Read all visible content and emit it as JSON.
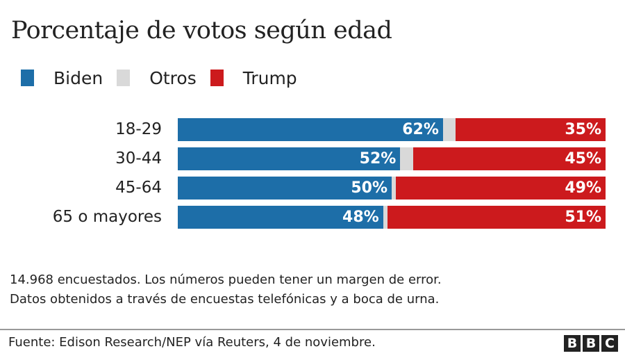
{
  "chart_data": {
    "type": "bar",
    "orientation": "horizontal-stacked",
    "title": "Porcentaje de votos según edad",
    "categories": [
      "18-29",
      "30-44",
      "45-64",
      "65 o mayores"
    ],
    "series": [
      {
        "name": "Biden",
        "values": [
          62,
          52,
          50,
          48
        ],
        "color": "#1d6ea8"
      },
      {
        "name": "Otros",
        "values": [
          3,
          3,
          1,
          1
        ],
        "color": "#d9d9d9"
      },
      {
        "name": "Trump",
        "values": [
          35,
          45,
          49,
          51
        ],
        "color": "#cc1a1d"
      }
    ],
    "value_labels": {
      "Biden": [
        "62%",
        "52%",
        "50%",
        "48%"
      ],
      "Trump": [
        "35%",
        "45%",
        "49%",
        "51%"
      ]
    },
    "xlim": [
      0,
      100
    ],
    "legend_position": "top-left",
    "grid": false,
    "xlabel": "",
    "ylabel": ""
  },
  "legend": [
    {
      "label": "Biden",
      "color": "#1d6ea8"
    },
    {
      "label": "Otros",
      "color": "#d9d9d9"
    },
    {
      "label": "Trump",
      "color": "#cc1a1d"
    }
  ],
  "notes": [
    "14.968 encuestados. Los números pueden tener un margen de error.",
    "Datos obtenidos a través de encuestas telefónicas y a boca de urna."
  ],
  "source": "Fuente:  Edison Research/NEP vía Reuters, 4 de noviembre.",
  "logo": [
    "B",
    "B",
    "C"
  ]
}
